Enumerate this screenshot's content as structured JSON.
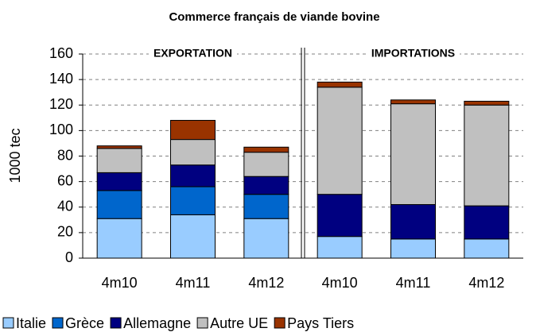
{
  "chart_data": {
    "type": "stacked-bar",
    "title": "Commerce français de viande bovine",
    "y_label": "1000 tec",
    "categories": [
      "4m10",
      "4m11",
      "4m12",
      "4m10",
      "4m11",
      "4m12"
    ],
    "annotations": [
      "EXPORTATION",
      "IMPORTATIONS"
    ],
    "series": [
      {
        "name": "Italie",
        "color": "#99ccff",
        "values": [
          31,
          34,
          31,
          17,
          15,
          15
        ]
      },
      {
        "name": "Grèce",
        "color": "#0066cc",
        "values": [
          22,
          22,
          19,
          0,
          0,
          0
        ]
      },
      {
        "name": "Allemagne",
        "color": "#000080",
        "values": [
          14,
          17,
          14,
          33,
          27,
          26
        ]
      },
      {
        "name": "Autre UE",
        "color": "#c0c0c0",
        "values": [
          19,
          20,
          19,
          84,
          79,
          79
        ]
      },
      {
        "name": "Pays Tiers",
        "color": "#993300",
        "values": [
          2,
          15,
          4,
          4,
          3,
          3
        ]
      }
    ],
    "ylim": [
      0,
      160
    ],
    "yticks": [
      0,
      20,
      40,
      60,
      80,
      100,
      120,
      140,
      160
    ],
    "grid": true
  }
}
